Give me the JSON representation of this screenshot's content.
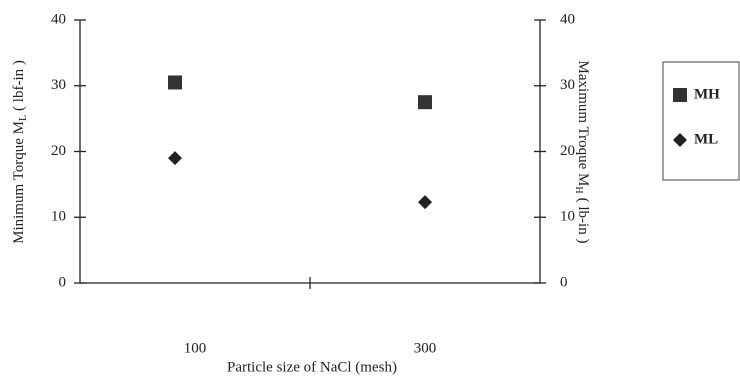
{
  "chart_data": {
    "type": "scatter",
    "categories": [
      "100",
      "300"
    ],
    "x_label": "Particle size of NaCl (mesh)",
    "y_label": {
      "main": "Minimum Torque M",
      "sub": "L",
      "unit": "( lbf-in )"
    },
    "y2_label": {
      "main": "Maximum Troque M",
      "sub": "H",
      "unit": "( lb-in )"
    },
    "ylim": [
      0,
      40
    ],
    "yticks": [
      0,
      10,
      20,
      30,
      40
    ],
    "y2lim": [
      0,
      40
    ],
    "y2ticks": [
      0,
      10,
      20,
      30,
      40
    ],
    "legend": "right",
    "series": [
      {
        "name": "MH",
        "color": "#333333",
        "marker": "square",
        "axis": "y2",
        "values": [
          30.5,
          27.5
        ]
      },
      {
        "name": "ML",
        "color": "#222222",
        "marker": "diamond",
        "values": [
          19,
          12.3
        ]
      }
    ]
  }
}
